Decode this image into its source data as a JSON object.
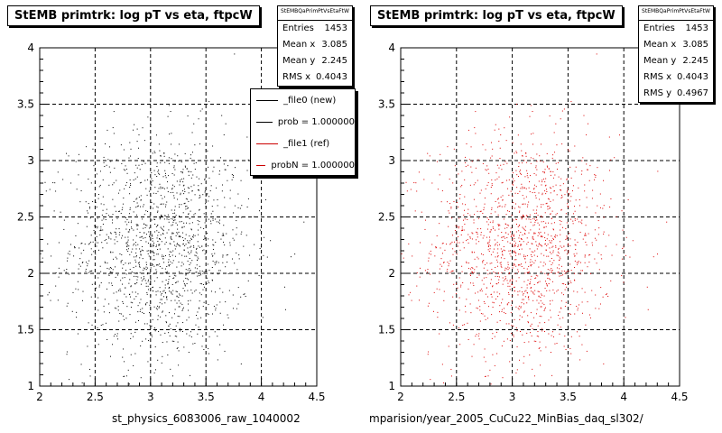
{
  "footer_text": "",
  "chart_data": [
    {
      "type": "scatter",
      "title": "StEMB primtrk: log pT vs eta, ftpcW",
      "xlabel": "st_physics_6083006_raw_1040002",
      "ylabel": "",
      "xlim": [
        2,
        4.5
      ],
      "ylim": [
        1,
        4
      ],
      "xticks": [
        "2",
        "2.5",
        "3",
        "3.5",
        "4",
        "4.5"
      ],
      "yticks": [
        "1",
        "1.5",
        "2",
        "2.5",
        "3",
        "3.5",
        "4"
      ],
      "grid": true,
      "marker_color": "#000000",
      "series": [
        {
          "n_points": 1453,
          "mean_x": 3.085,
          "mean_y": 2.245,
          "rms_x": 0.4043,
          "rms_y": 0.4967,
          "values": []
        }
      ],
      "stats": {
        "header": "StEMBQaPrimPtVsEtaFtW",
        "rows": [
          {
            "label": "Entries",
            "value": "1453"
          },
          {
            "label": "Mean x",
            "value": "3.085"
          },
          {
            "label": "Mean y",
            "value": "2.245"
          },
          {
            "label": "RMS x",
            "value": "0.4043"
          }
        ]
      },
      "legend": {
        "placement": "top-right",
        "entries": [
          {
            "label": "_file0 (new)",
            "color": "#000000"
          },
          {
            "label": "prob = 1.000000",
            "color": "#000000"
          },
          {
            "label": "_file1 (ref)",
            "color": "#cc0000"
          },
          {
            "label": "probN = 1.000000",
            "color": "#cc0000"
          }
        ]
      }
    },
    {
      "type": "scatter",
      "title": "StEMB primtrk: log pT vs eta, ftpcW",
      "xlabel": "mparision/year_2005_CuCu22_MinBias_daq_sl302/",
      "ylabel": "",
      "xlim": [
        2,
        4.5
      ],
      "ylim": [
        1,
        4
      ],
      "xticks": [
        "2",
        "2.5",
        "3",
        "3.5",
        "4",
        "4.5"
      ],
      "yticks": [
        "1",
        "1.5",
        "2",
        "2.5",
        "3",
        "3.5",
        "4"
      ],
      "grid": true,
      "marker_color": "#dd0000",
      "series": [
        {
          "n_points": 1453,
          "mean_x": 3.085,
          "mean_y": 2.245,
          "rms_x": 0.4043,
          "rms_y": 0.4967,
          "values": []
        }
      ],
      "stats": {
        "header": "StEMBQaPrimPtVsEtaFtW",
        "rows": [
          {
            "label": "Entries",
            "value": "1453"
          },
          {
            "label": "Mean x",
            "value": "3.085"
          },
          {
            "label": "Mean y",
            "value": "2.245"
          },
          {
            "label": "RMS x",
            "value": "0.4043"
          },
          {
            "label": "RMS y",
            "value": "0.4967"
          }
        ]
      }
    }
  ]
}
